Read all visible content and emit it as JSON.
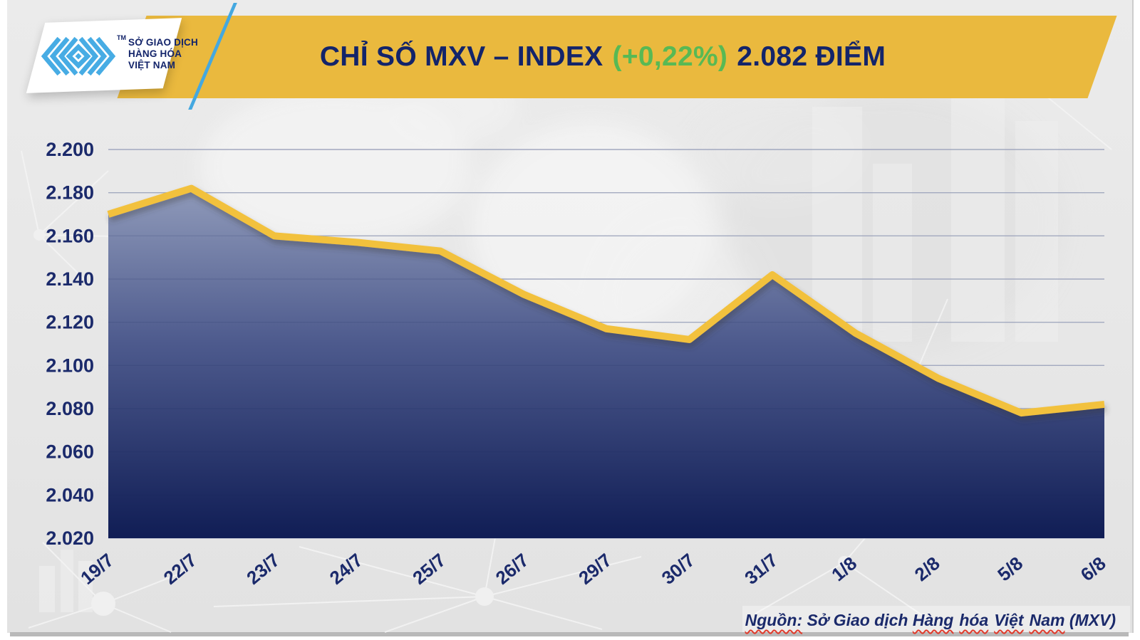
{
  "header": {
    "banner_color": "#EAB93E",
    "title": {
      "main": "CHỈ SỐ MXV – INDEX",
      "change": "(+0,22%)",
      "value": "2.082 ĐIỂM"
    }
  },
  "logo": {
    "tm": "TM",
    "lines": [
      "SỞ GIAO DỊCH",
      "HÀNG HÓA",
      "VIỆT NAM"
    ]
  },
  "source_note": {
    "word_nguon": "Nguồn:",
    "text_so_giao_dich": " Sở Giao dịch ",
    "word_hang": "Hàng",
    "word_hoa": "hóa",
    "word_viet": "Việt",
    "word_nam": "Nam",
    "text_mxv": " (MXV)"
  },
  "colors": {
    "banner_gold": "#EAB93E",
    "title_navy": "#13246A",
    "change_green": "#58B954",
    "axis_navy": "#1B2A6B",
    "line_yellow": "#F2C13E",
    "fill_top": "#A0AAC5",
    "fill_mid": "#4D5A8D",
    "fill_bottom": "#101D55",
    "logo_blue": "#47ACE4",
    "slash_blue": "#44A8E0",
    "squiggle_red": "#E03A2B",
    "background_gray": "#E7E7E7"
  },
  "chart_data": {
    "type": "area",
    "title": "CHỈ SỐ MXV – INDEX (+0,22%) 2.082 ĐIỂM",
    "categories": [
      "19/7",
      "22/7",
      "23/7",
      "24/7",
      "25/7",
      "26/7",
      "29/7",
      "30/7",
      "31/7",
      "1/8",
      "2/8",
      "5/8",
      "6/8"
    ],
    "series": [
      {
        "name": "MXV-Index",
        "values": [
          2170,
          2182,
          2160,
          2157,
          2153,
          2133,
          2117,
          2112,
          2142,
          2115,
          2094,
          2078,
          2082
        ]
      }
    ],
    "latest_value": 2082,
    "latest_value_label": "2.082",
    "change_percent": "+0,22%",
    "unit": "điểm",
    "y_axis": {
      "min": 2020,
      "max": 2200,
      "tick_step": 20,
      "tick_values": [
        2200,
        2180,
        2160,
        2140,
        2120,
        2100,
        2080,
        2060,
        2040,
        2020
      ],
      "tick_labels": [
        "2.200",
        "2.180",
        "2.160",
        "2.140",
        "2.120",
        "2.100",
        "2.080",
        "2.060",
        "2.040",
        "2.020"
      ]
    },
    "grid": "horizontal",
    "legend": "none",
    "line_color": "#F2C13E",
    "area_gradient": [
      "#A0AAC5",
      "#4D5A8D",
      "#101D55"
    ]
  }
}
